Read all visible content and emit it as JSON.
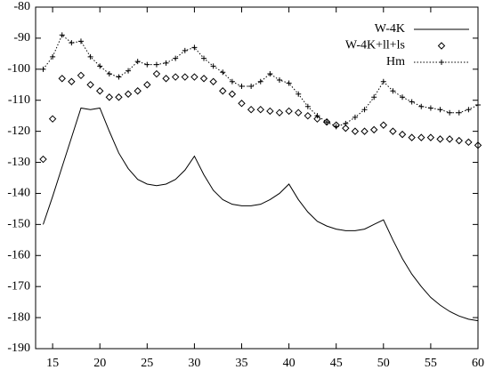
{
  "chart_data": {
    "type": "line",
    "x": [
      14,
      15,
      16,
      17,
      18,
      19,
      20,
      21,
      22,
      23,
      24,
      25,
      26,
      27,
      28,
      29,
      30,
      31,
      32,
      33,
      34,
      35,
      36,
      37,
      38,
      39,
      40,
      41,
      42,
      43,
      44,
      45,
      46,
      47,
      48,
      49,
      50,
      51,
      52,
      53,
      54,
      55,
      56,
      57,
      58,
      59,
      60
    ],
    "series": [
      {
        "name": "W-4K",
        "color": "#000000",
        "style": "line",
        "values": [
          -150,
          -141,
          -131.5,
          -122,
          -112.5,
          -113,
          -112.5,
          -120,
          -127,
          -132,
          -135.5,
          -137,
          -137.5,
          -137,
          -135.5,
          -132.5,
          -128,
          -134,
          -139,
          -142,
          -143.5,
          -144,
          -144,
          -143.5,
          -142,
          -140,
          -137,
          -142,
          -146,
          -149,
          -150.5,
          -151.5,
          -152,
          -152,
          -151.5,
          -150,
          -148.5,
          -155,
          -161,
          -166,
          -170,
          -173.5,
          -176,
          -178,
          -179.5,
          -180.5,
          -181
        ]
      },
      {
        "name": "W-4K+ll+ls",
        "color": "#000000",
        "style": "points",
        "values": [
          -129,
          -116,
          -103,
          -104,
          -102,
          -105,
          -107,
          -109,
          -109,
          -108,
          -107,
          -105,
          -101.5,
          -103,
          -102.5,
          -102.5,
          -102.5,
          -103,
          -104,
          -107,
          -108,
          -111,
          -113,
          -113,
          -113.5,
          -114,
          -113.5,
          -114,
          -115,
          -116,
          -117,
          -118,
          -119,
          -120,
          -120,
          -119.5,
          -118,
          -120,
          -121,
          -122,
          -122,
          -122,
          -122.5,
          -122.5,
          -123,
          -123.5,
          -124.5
        ]
      },
      {
        "name": "Hm",
        "color": "#000000",
        "style": "linespoints",
        "values": [
          -100,
          -96,
          -89,
          -91.5,
          -91,
          -96,
          -99,
          -101.5,
          -102.5,
          -100.5,
          -97.5,
          -98.5,
          -98.5,
          -98,
          -96.5,
          -94,
          -93,
          -96.5,
          -99,
          -101,
          -104,
          -105.5,
          -105.5,
          -104,
          -101.5,
          -103.5,
          -104.5,
          -108,
          -112,
          -115,
          -117,
          -118.5,
          -117.5,
          -115.5,
          -113,
          -109,
          -104,
          -107,
          -109,
          -110.5,
          -112,
          -112.5,
          -113,
          -114,
          -114,
          -113,
          -111.5
        ]
      }
    ],
    "xlim": [
      13.2,
      60
    ],
    "xticks": [
      15,
      20,
      25,
      30,
      35,
      40,
      45,
      50,
      55,
      60
    ],
    "ylim": [
      -190,
      -80
    ],
    "yticks": [
      -190,
      -180,
      -170,
      -160,
      -150,
      -140,
      -130,
      -120,
      -110,
      -100,
      -90,
      -80
    ],
    "legend": "top-right",
    "grid": false
  }
}
